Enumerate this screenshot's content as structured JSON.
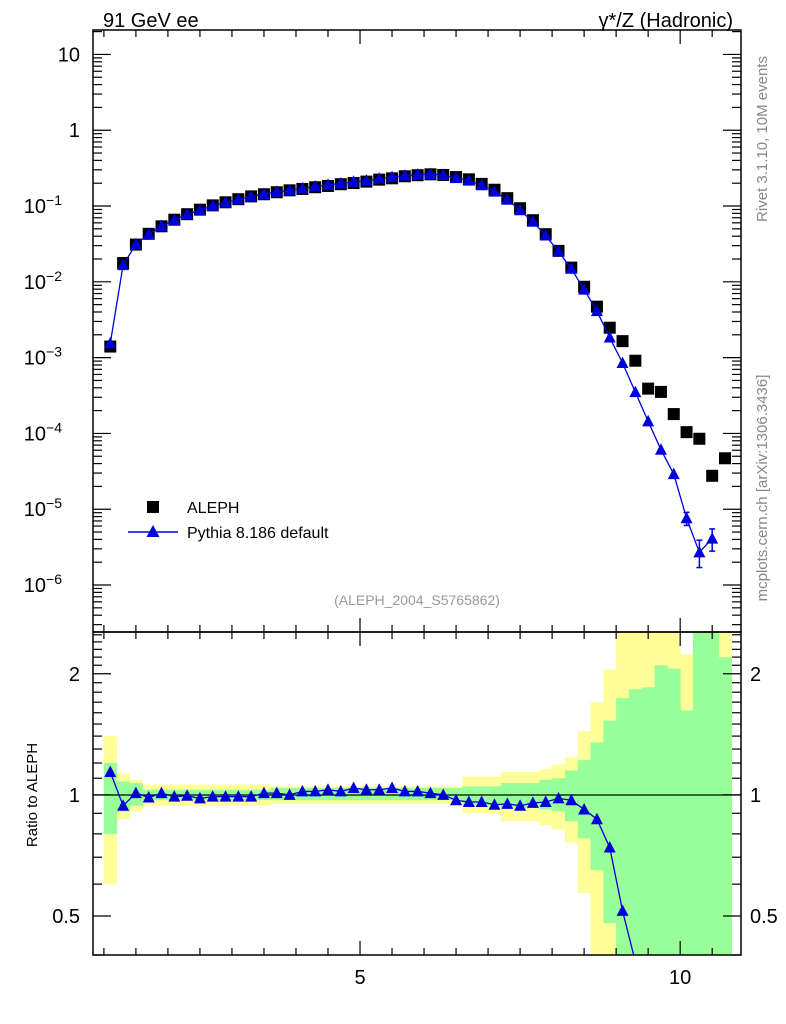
{
  "chart_data": {
    "type": "scatter",
    "title_left": "91 GeV ee",
    "title_right": "γ*/Z (Hadronic)",
    "side_label_top": "Rivet 3.1.10,  10M events",
    "side_label_bottom": "mcplots.cern.ch [arXiv:1306.3436]",
    "analysis_label": "(ALEPH_2004_S5765862)",
    "xlabel": "",
    "ylabel": "",
    "ratio_ylabel": "Ratio to ALEPH",
    "xlim": [
      0.83,
      10.95
    ],
    "ylim": [
      2.4e-07,
      21
    ],
    "yscale": "log",
    "ratio_ylim": [
      0.4,
      2.54
    ],
    "ratio_yscale": "log",
    "x_tick_labels": [
      "5",
      "10"
    ],
    "x_tick_values": [
      5,
      10
    ],
    "y_tick_labels": [
      {
        "base": "10",
        "exp": ""
      },
      {
        "base": "1",
        "exp": ""
      },
      {
        "base": "10",
        "exp": "−1"
      },
      {
        "base": "10",
        "exp": "−2"
      },
      {
        "base": "10",
        "exp": "−3"
      },
      {
        "base": "10",
        "exp": "−4"
      },
      {
        "base": "10",
        "exp": "−5"
      },
      {
        "base": "10",
        "exp": "−6"
      }
    ],
    "y_tick_values": [
      10,
      1,
      0.1,
      0.01,
      0.001,
      0.0001,
      1e-05,
      1e-06
    ],
    "ratio_tick_labels": [
      "2",
      "1",
      "0.5"
    ],
    "ratio_tick_values": [
      2,
      1,
      0.5
    ],
    "legend_placement": "lower-left",
    "bin_width": 0.2,
    "series": [
      {
        "name": "ALEPH",
        "color": "#000000",
        "marker": "square",
        "x": [
          1.1,
          1.3,
          1.5,
          1.7,
          1.9,
          2.1,
          2.3,
          2.5,
          2.7,
          2.9,
          3.1,
          3.3,
          3.5,
          3.7,
          3.9,
          4.1,
          4.3,
          4.5,
          4.7,
          4.9,
          5.1,
          5.3,
          5.5,
          5.7,
          5.9,
          6.1,
          6.3,
          6.5,
          6.7,
          6.9,
          7.1,
          7.3,
          7.5,
          7.7,
          7.9,
          8.1,
          8.3,
          8.5,
          8.7,
          8.9,
          9.1,
          9.3,
          9.5,
          9.7,
          9.9,
          10.1,
          10.3,
          10.5,
          10.7
        ],
        "values": [
          0.0014,
          0.0177,
          0.031,
          0.043,
          0.054,
          0.066,
          0.078,
          0.0895,
          0.102,
          0.112,
          0.123,
          0.134,
          0.143,
          0.152,
          0.161,
          0.168,
          0.177,
          0.184,
          0.194,
          0.201,
          0.21,
          0.223,
          0.232,
          0.247,
          0.255,
          0.262,
          0.257,
          0.241,
          0.225,
          0.196,
          0.164,
          0.127,
          0.0935,
          0.065,
          0.0425,
          0.0256,
          0.0154,
          0.0086,
          0.0047,
          0.00248,
          0.00165,
          0.00091,
          0.00039,
          0.000353,
          0.00018,
          0.000104,
          8.5e-05,
          2.76e-05,
          4.7e-05
        ]
      },
      {
        "name": "Pythia 8.186 default",
        "color": "#0000dd",
        "marker": "triangle",
        "x": [
          1.1,
          1.3,
          1.5,
          1.7,
          1.9,
          2.1,
          2.3,
          2.5,
          2.7,
          2.9,
          3.1,
          3.3,
          3.5,
          3.7,
          3.9,
          4.1,
          4.3,
          4.5,
          4.7,
          4.9,
          5.1,
          5.3,
          5.5,
          5.7,
          5.9,
          6.1,
          6.3,
          6.5,
          6.7,
          6.9,
          7.1,
          7.3,
          7.5,
          7.7,
          7.9,
          8.1,
          8.3,
          8.5,
          8.7,
          8.9,
          9.1,
          9.3,
          9.5,
          9.7,
          9.9,
          10.1,
          10.3,
          10.5
        ],
        "values": [
          0.00155,
          0.0166,
          0.0313,
          0.0424,
          0.0545,
          0.0653,
          0.0776,
          0.0877,
          0.101,
          0.111,
          0.122,
          0.133,
          0.144,
          0.154,
          0.161,
          0.171,
          0.181,
          0.19,
          0.198,
          0.209,
          0.216,
          0.23,
          0.241,
          0.252,
          0.26,
          0.265,
          0.257,
          0.234,
          0.216,
          0.188,
          0.155,
          0.121,
          0.0879,
          0.0621,
          0.0408,
          0.0251,
          0.0149,
          0.0079,
          0.0041,
          0.00184,
          0.00085,
          0.00035,
          0.000144,
          6.1e-05,
          2.9e-05,
          7.6e-06,
          2.7e-06,
          4.1e-06
        ],
        "errors": [
          {
            "x": 10.1,
            "lo": 6.1e-06,
            "hi": 9.1e-06
          },
          {
            "x": 10.3,
            "lo": 1.7e-06,
            "hi": 3.9e-06
          },
          {
            "x": 10.5,
            "lo": 2.8e-06,
            "hi": 5.5e-06
          }
        ],
        "ratio": [
          1.14,
          0.94,
          1.01,
          0.985,
          1.01,
          0.99,
          0.995,
          0.98,
          0.99,
          0.99,
          0.99,
          0.99,
          1.01,
          1.01,
          1.0,
          1.02,
          1.02,
          1.03,
          1.02,
          1.04,
          1.03,
          1.03,
          1.04,
          1.02,
          1.02,
          1.01,
          1.0,
          0.97,
          0.96,
          0.96,
          0.945,
          0.95,
          0.94,
          0.955,
          0.96,
          0.98,
          0.97,
          0.92,
          0.87,
          0.74,
          0.515,
          0.385,
          0.37,
          0.17,
          0.16,
          0.073,
          0.032,
          0.149
        ]
      }
    ],
    "ratio_bands": {
      "outer_color": "#ffff99",
      "inner_color": "#99ff99",
      "outer": [
        [
          0.6,
          1.4
        ],
        [
          0.87,
          1.13
        ],
        [
          0.91,
          1.09
        ],
        [
          0.94,
          1.06
        ],
        [
          0.94,
          1.06
        ],
        [
          0.94,
          1.06
        ],
        [
          0.94,
          1.06
        ],
        [
          0.94,
          1.06
        ],
        [
          0.94,
          1.06
        ],
        [
          0.94,
          1.06
        ],
        [
          0.94,
          1.06
        ],
        [
          0.94,
          1.06
        ],
        [
          0.94,
          1.06
        ],
        [
          0.95,
          1.05
        ],
        [
          0.95,
          1.05
        ],
        [
          0.95,
          1.05
        ],
        [
          0.95,
          1.05
        ],
        [
          0.95,
          1.05
        ],
        [
          0.95,
          1.05
        ],
        [
          0.95,
          1.05
        ],
        [
          0.95,
          1.05
        ],
        [
          0.95,
          1.05
        ],
        [
          0.95,
          1.05
        ],
        [
          0.95,
          1.05
        ],
        [
          0.95,
          1.05
        ],
        [
          0.95,
          1.05
        ],
        [
          0.95,
          1.05
        ],
        [
          0.95,
          1.05
        ],
        [
          0.9,
          1.11
        ],
        [
          0.9,
          1.11
        ],
        [
          0.9,
          1.11
        ],
        [
          0.86,
          1.14
        ],
        [
          0.86,
          1.14
        ],
        [
          0.86,
          1.14
        ],
        [
          0.84,
          1.16
        ],
        [
          0.82,
          1.19
        ],
        [
          0.76,
          1.24
        ],
        [
          0.57,
          1.44
        ],
        [
          0.3,
          1.7
        ],
        [
          0.3,
          2.05
        ],
        [
          0.3,
          2.6
        ],
        [
          0.3,
          2.6
        ],
        [
          0.3,
          2.6
        ],
        [
          0.3,
          2.6
        ],
        [
          0.3,
          2.6
        ],
        [
          0.3,
          2.24
        ],
        [
          0.3,
          2.6
        ],
        [
          0.3,
          2.6
        ],
        [
          0.3,
          2.6
        ]
      ],
      "inner": [
        [
          0.8,
          1.2
        ],
        [
          0.91,
          1.08
        ],
        [
          0.94,
          1.07
        ],
        [
          0.97,
          1.03
        ],
        [
          0.97,
          1.03
        ],
        [
          0.97,
          1.03
        ],
        [
          0.97,
          1.03
        ],
        [
          0.97,
          1.03
        ],
        [
          0.97,
          1.03
        ],
        [
          0.97,
          1.03
        ],
        [
          0.97,
          1.03
        ],
        [
          0.97,
          1.03
        ],
        [
          0.97,
          1.03
        ],
        [
          0.97,
          1.04
        ],
        [
          0.97,
          1.04
        ],
        [
          0.97,
          1.04
        ],
        [
          0.97,
          1.04
        ],
        [
          0.97,
          1.04
        ],
        [
          0.97,
          1.04
        ],
        [
          0.97,
          1.04
        ],
        [
          0.97,
          1.04
        ],
        [
          0.97,
          1.04
        ],
        [
          0.97,
          1.04
        ],
        [
          0.97,
          1.04
        ],
        [
          0.97,
          1.04
        ],
        [
          0.97,
          1.04
        ],
        [
          0.97,
          1.04
        ],
        [
          0.97,
          1.04
        ],
        [
          0.94,
          1.05
        ],
        [
          0.94,
          1.05
        ],
        [
          0.94,
          1.05
        ],
        [
          0.93,
          1.07
        ],
        [
          0.93,
          1.07
        ],
        [
          0.93,
          1.07
        ],
        [
          0.92,
          1.09
        ],
        [
          0.91,
          1.1
        ],
        [
          0.86,
          1.15
        ],
        [
          0.78,
          1.22
        ],
        [
          0.65,
          1.35
        ],
        [
          0.48,
          1.53
        ],
        [
          0.3,
          1.74
        ],
        [
          0.3,
          1.83
        ],
        [
          0.3,
          1.85
        ],
        [
          0.3,
          2.1
        ],
        [
          0.3,
          2.06
        ],
        [
          0.3,
          1.62
        ],
        [
          0.3,
          2.6
        ],
        [
          0.3,
          2.6
        ],
        [
          0.3,
          2.2
        ]
      ]
    }
  }
}
